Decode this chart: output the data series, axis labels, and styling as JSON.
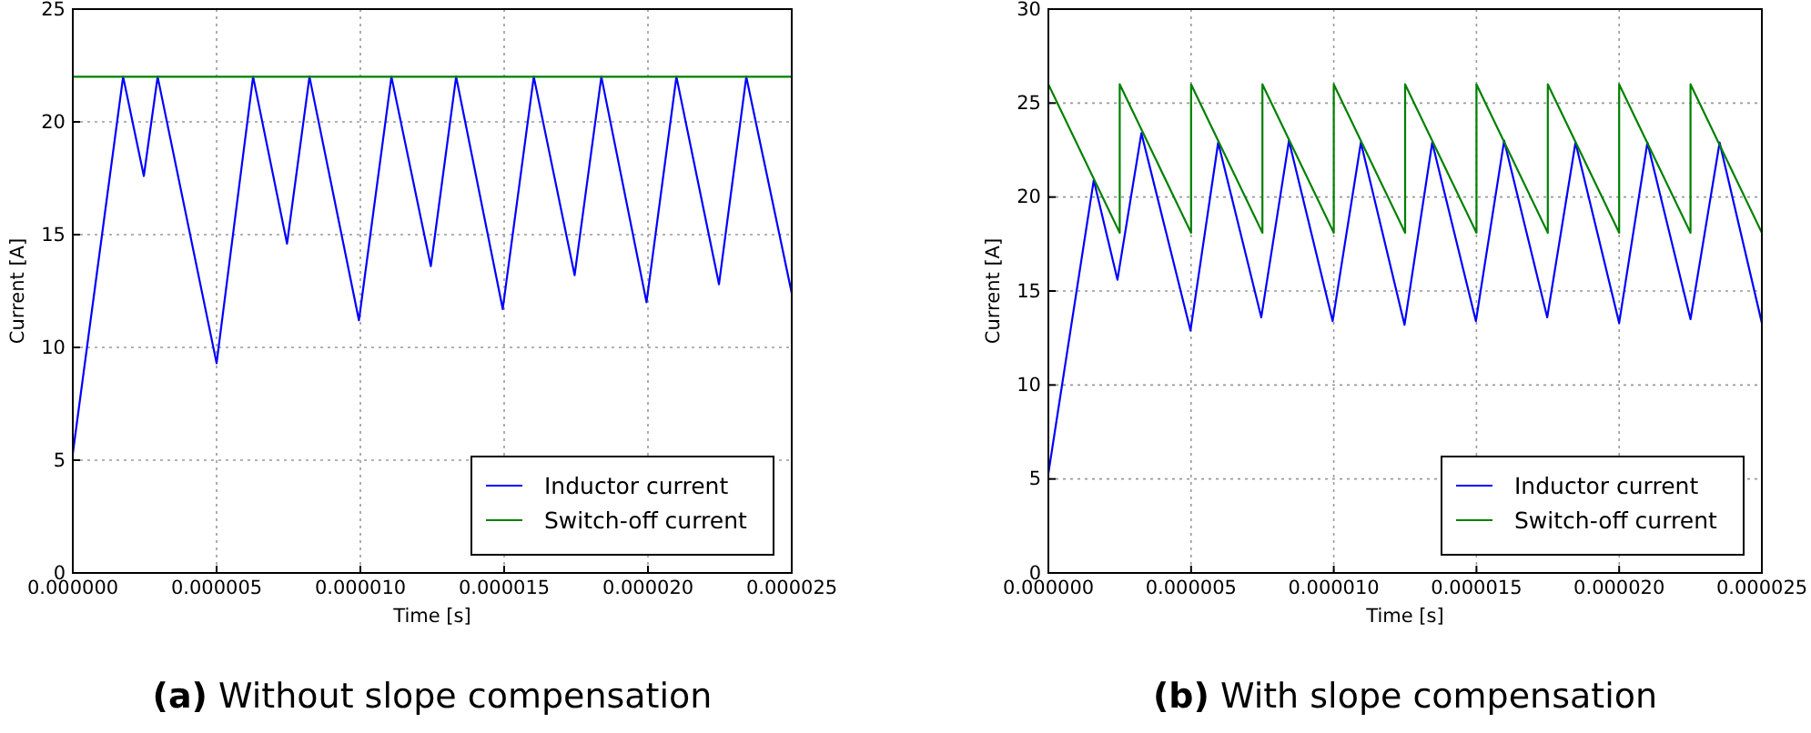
{
  "chart_data": [
    {
      "type": "line",
      "xlabel": "Time [s]",
      "ylabel": "Current [A]",
      "annotations": [
        "(a) Without slope compensation"
      ],
      "xlim": [
        0,
        2.5e-05
      ],
      "ylim": [
        0,
        25
      ],
      "xticks": [
        {
          "value": 0,
          "label": "0.000000"
        },
        {
          "value": 5e-06,
          "label": "0.000005"
        },
        {
          "value": 1e-05,
          "label": "0.000010"
        },
        {
          "value": 1.5e-05,
          "label": "0.000015"
        },
        {
          "value": 2e-05,
          "label": "0.000020"
        },
        {
          "value": 2.5e-05,
          "label": "0.000025"
        }
      ],
      "yticks": [
        0,
        5,
        10,
        15,
        20,
        25
      ],
      "grid": true,
      "legend": "bottom right",
      "line_style": "solid",
      "series": [
        {
          "name": "Inductor current",
          "color": "#0000ff",
          "x": [
            0,
            1.75e-06,
            2.47e-06,
            2.95e-06,
            5e-06,
            6.27e-06,
            7.45e-06,
            8.23e-06,
            9.95e-06,
            1.108e-05,
            1.245e-05,
            1.333e-05,
            1.495e-05,
            1.603e-05,
            1.745e-05,
            1.838e-05,
            1.995e-05,
            2.099e-05,
            2.247e-05,
            2.342e-05,
            2.5e-05
          ],
          "values": [
            5.3,
            22,
            17.6,
            22,
            9.3,
            22,
            14.6,
            22,
            11.2,
            22,
            13.6,
            22,
            11.7,
            22,
            13.2,
            22,
            12.0,
            22,
            12.8,
            22,
            12.4
          ]
        },
        {
          "name": "Switch-off current",
          "color": "#008000",
          "x": [
            0,
            2.5e-05
          ],
          "values": [
            22,
            22
          ]
        }
      ]
    },
    {
      "type": "line",
      "xlabel": "Time [s]",
      "ylabel": "Current [A]",
      "annotations": [
        "(b) With slope compensation"
      ],
      "xlim": [
        0,
        2.5e-05
      ],
      "ylim": [
        0,
        30
      ],
      "xticks": [
        {
          "value": 0,
          "label": "0.000000"
        },
        {
          "value": 5e-06,
          "label": "0.000005"
        },
        {
          "value": 1e-05,
          "label": "0.000010"
        },
        {
          "value": 1.5e-05,
          "label": "0.000015"
        },
        {
          "value": 2e-05,
          "label": "0.000020"
        },
        {
          "value": 2.5e-05,
          "label": "0.000025"
        }
      ],
      "yticks": [
        0,
        5,
        10,
        15,
        20,
        25,
        30
      ],
      "grid": true,
      "legend": "bottom right",
      "line_style": "solid",
      "series": [
        {
          "name": "Inductor current",
          "color": "#0000ff",
          "x": [
            0,
            1.59e-06,
            2.42e-06,
            3.26e-06,
            4.98e-06,
            5.95e-06,
            7.46e-06,
            8.43e-06,
            9.96e-06,
            1.095e-05,
            1.248e-05,
            1.345e-05,
            1.498e-05,
            1.597e-05,
            1.748e-05,
            1.847e-05,
            2e-05,
            2.099e-05,
            2.25e-05,
            2.352e-05,
            2.5e-05
          ],
          "values": [
            5.3,
            20.9,
            15.6,
            23.4,
            12.9,
            22.9,
            13.6,
            23.0,
            13.4,
            22.9,
            13.2,
            22.9,
            13.4,
            23.0,
            13.6,
            22.9,
            13.3,
            22.9,
            13.5,
            22.9,
            13.3
          ]
        },
        {
          "name": "Switch-off current",
          "color": "#008000",
          "x": [
            0,
            2.5e-06,
            2.5e-06,
            5e-06,
            5e-06,
            7.5e-06,
            7.5e-06,
            1e-05,
            1e-05,
            1.25e-05,
            1.25e-05,
            1.5e-05,
            1.5e-05,
            1.75e-05,
            1.75e-05,
            2e-05,
            2e-05,
            2.25e-05,
            2.25e-05,
            2.5e-05
          ],
          "values": [
            26.0,
            18.1,
            26.0,
            18.1,
            26.0,
            18.1,
            26.0,
            18.1,
            26.0,
            18.1,
            26.0,
            18.1,
            26.0,
            18.1,
            26.0,
            18.1,
            26.0,
            18.1,
            26.0,
            18.1
          ]
        }
      ]
    }
  ]
}
